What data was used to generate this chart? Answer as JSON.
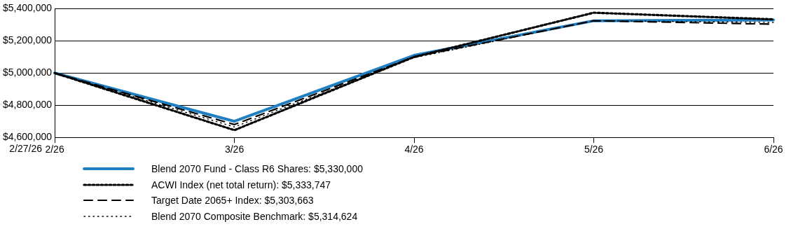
{
  "chart_data": {
    "type": "line",
    "categories": [
      "2/26",
      "3/26",
      "4/26",
      "5/26",
      "6/26"
    ],
    "series": [
      {
        "name": "Blend 2070 Fund - Class R6 Shares: $5,330,000",
        "color": "#1f7fc0",
        "line_style": "solid",
        "values": [
          5000000,
          4700000,
          5110000,
          5325000,
          5330000
        ]
      },
      {
        "name": "ACWI Index (net total return): $5,333,747",
        "color": "#000000",
        "line_style": "dotted",
        "values": [
          5000000,
          4645000,
          5100000,
          5375000,
          5333747
        ]
      },
      {
        "name": "Target Date 2065+ Index: $5,303,663",
        "color": "#000000",
        "line_style": "dashed",
        "values": [
          5000000,
          4680000,
          5100000,
          5325000,
          5303663
        ]
      },
      {
        "name": "Blend 2070 Composite Benchmark: $5,314,624",
        "color": "#000000",
        "line_style": "dotted",
        "values": [
          5000000,
          4665000,
          5095000,
          5325000,
          5314624
        ]
      }
    ],
    "ylim": [
      4600000,
      5400000
    ],
    "yticks": [
      {
        "value": 4600000,
        "label": "$4,600,000"
      },
      {
        "value": 4800000,
        "label": "$4,800,000"
      },
      {
        "value": 5000000,
        "label": "$5,000,000"
      },
      {
        "value": 5200000,
        "label": "$5,200,000"
      },
      {
        "value": 5400000,
        "label": "$5,400,000"
      }
    ],
    "grid": "y",
    "legend": "bottom",
    "marker": "none",
    "annotations": [
      "2/27/26"
    ]
  }
}
